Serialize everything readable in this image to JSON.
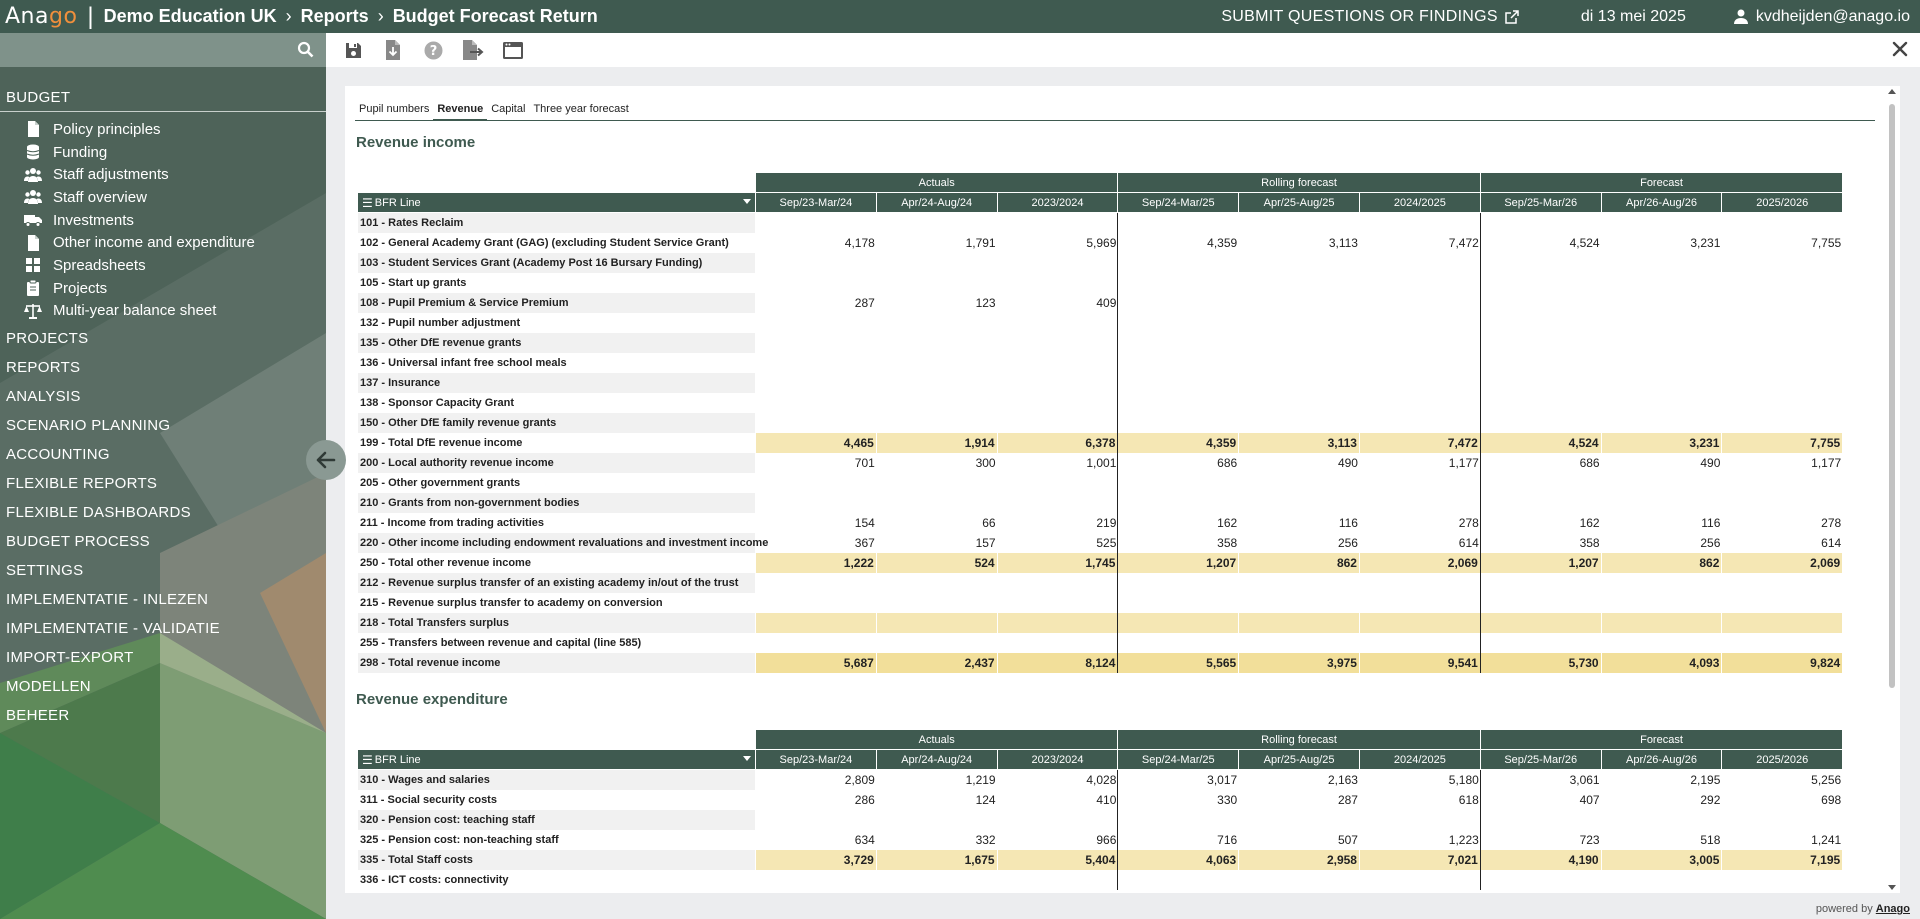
{
  "header": {
    "logo_a": "Ana",
    "logo_b": "go",
    "breadcrumb": [
      "Demo Education UK",
      "Reports",
      "Budget Forecast Return"
    ],
    "submit_label": "SUBMIT QUESTIONS OR FINDINGS",
    "date": "di 13 mei 2025",
    "user": "kvdheijden@anago.io"
  },
  "sidebar": {
    "search_placeholder": "",
    "budget_label": "BUDGET",
    "budget_items": [
      {
        "label": "Policy principles",
        "icon": "document-icon"
      },
      {
        "label": "Funding",
        "icon": "coins-icon"
      },
      {
        "label": "Staff adjustments",
        "icon": "users-icon"
      },
      {
        "label": "Staff overview",
        "icon": "users-icon"
      },
      {
        "label": "Investments",
        "icon": "truck-icon"
      },
      {
        "label": "Other income and expenditure",
        "icon": "document-icon"
      },
      {
        "label": "Spreadsheets",
        "icon": "grid-icon"
      },
      {
        "label": "Projects",
        "icon": "clipboard-icon"
      },
      {
        "label": "Multi-year balance sheet",
        "icon": "scale-icon"
      }
    ],
    "sections": [
      "PROJECTS",
      "REPORTS",
      "ANALYSIS",
      "SCENARIO PLANNING",
      "ACCOUNTING",
      "FLEXIBLE REPORTS",
      "FLEXIBLE DASHBOARDS",
      "BUDGET PROCESS",
      "SETTINGS",
      "IMPLEMENTATIE - INLEZEN",
      "IMPLEMENTATIE - VALIDATIE",
      "IMPORT-EXPORT",
      "MODELLEN",
      "BEHEER"
    ]
  },
  "toolbar": {
    "icons": [
      "save-icon",
      "download-icon",
      "help-icon",
      "export-icon",
      "window-icon"
    ]
  },
  "tabs": [
    "Pupil numbers",
    "Revenue",
    "Capital",
    "Three year forecast"
  ],
  "active_tab": 1,
  "grid_header": {
    "label_col": "BFR Line",
    "groups": [
      "Actuals",
      "Rolling forecast",
      "Forecast"
    ],
    "columns": [
      "Sep/23-Mar/24",
      "Apr/24-Aug/24",
      "2023/2024",
      "Sep/24-Mar/25",
      "Apr/25-Aug/25",
      "2024/2025",
      "Sep/25-Mar/26",
      "Apr/26-Aug/26",
      "2025/2026"
    ]
  },
  "income": {
    "title": "Revenue income",
    "rows": [
      {
        "label": "101 - Rates Reclaim",
        "type": "normal",
        "v": [
          "",
          "",
          "",
          "",
          "",
          "",
          "",
          "",
          ""
        ]
      },
      {
        "label": "102 - General Academy Grant (GAG) (excluding Student Service Grant)",
        "type": "normal",
        "v": [
          "4,178",
          "1,791",
          "5,969",
          "4,359",
          "3,113",
          "7,472",
          "4,524",
          "3,231",
          "7,755"
        ]
      },
      {
        "label": "103 - Student Services Grant (Academy Post 16 Bursary Funding)",
        "type": "normal",
        "v": [
          "",
          "",
          "",
          "",
          "",
          "",
          "",
          "",
          ""
        ]
      },
      {
        "label": "105 - Start up grants",
        "type": "normal",
        "v": [
          "",
          "",
          "",
          "",
          "",
          "",
          "",
          "",
          ""
        ]
      },
      {
        "label": "108 - Pupil Premium & Service Premium",
        "type": "normal",
        "v": [
          "287",
          "123",
          "409",
          "",
          "",
          "",
          "",
          "",
          ""
        ]
      },
      {
        "label": "132 - Pupil number adjustment",
        "type": "normal",
        "v": [
          "",
          "",
          "",
          "",
          "",
          "",
          "",
          "",
          ""
        ]
      },
      {
        "label": "135 - Other DfE revenue grants",
        "type": "normal",
        "v": [
          "",
          "",
          "",
          "",
          "",
          "",
          "",
          "",
          ""
        ]
      },
      {
        "label": "136 - Universal infant free school meals",
        "type": "normal",
        "v": [
          "",
          "",
          "",
          "",
          "",
          "",
          "",
          "",
          ""
        ]
      },
      {
        "label": "137 - Insurance",
        "type": "normal",
        "v": [
          "",
          "",
          "",
          "",
          "",
          "",
          "",
          "",
          ""
        ]
      },
      {
        "label": "138 - Sponsor Capacity Grant",
        "type": "normal",
        "v": [
          "",
          "",
          "",
          "",
          "",
          "",
          "",
          "",
          ""
        ]
      },
      {
        "label": "150 - Other DfE family revenue grants",
        "type": "normal",
        "v": [
          "",
          "",
          "",
          "",
          "",
          "",
          "",
          "",
          ""
        ]
      },
      {
        "label": "199 - Total DfE revenue income",
        "type": "total",
        "v": [
          "4,465",
          "1,914",
          "6,378",
          "4,359",
          "3,113",
          "7,472",
          "4,524",
          "3,231",
          "7,755"
        ]
      },
      {
        "label": "200 - Local authority revenue income",
        "type": "normal",
        "v": [
          "701",
          "300",
          "1,001",
          "686",
          "490",
          "1,177",
          "686",
          "490",
          "1,177"
        ]
      },
      {
        "label": "205 - Other government grants",
        "type": "normal",
        "v": [
          "",
          "",
          "",
          "",
          "",
          "",
          "",
          "",
          ""
        ]
      },
      {
        "label": "210 - Grants from non-government bodies",
        "type": "normal",
        "v": [
          "",
          "",
          "",
          "",
          "",
          "",
          "",
          "",
          ""
        ]
      },
      {
        "label": "211 - Income from trading activities",
        "type": "normal",
        "v": [
          "154",
          "66",
          "219",
          "162",
          "116",
          "278",
          "162",
          "116",
          "278"
        ]
      },
      {
        "label": "220 - Other income including endowment revaluations and investment income",
        "type": "normal",
        "v": [
          "367",
          "157",
          "525",
          "358",
          "256",
          "614",
          "358",
          "256",
          "614"
        ]
      },
      {
        "label": "250 - Total other revenue income",
        "type": "total",
        "v": [
          "1,222",
          "524",
          "1,745",
          "1,207",
          "862",
          "2,069",
          "1,207",
          "862",
          "2,069"
        ]
      },
      {
        "label": "212 - Revenue surplus transfer of an existing academy in/out of the trust",
        "type": "normal",
        "v": [
          "",
          "",
          "",
          "",
          "",
          "",
          "",
          "",
          ""
        ]
      },
      {
        "label": "215 - Revenue surplus transfer to academy on conversion",
        "type": "normal",
        "v": [
          "",
          "",
          "",
          "",
          "",
          "",
          "",
          "",
          ""
        ]
      },
      {
        "label": "218 - Total Transfers surplus",
        "type": "total",
        "v": [
          "",
          "",
          "",
          "",
          "",
          "",
          "",
          "",
          ""
        ]
      },
      {
        "label": "255 - Transfers between revenue and capital (line 585)",
        "type": "normal",
        "v": [
          "",
          "",
          "",
          "",
          "",
          "",
          "",
          "",
          ""
        ]
      },
      {
        "label": "298 - Total revenue income",
        "type": "grand",
        "v": [
          "5,687",
          "2,437",
          "8,124",
          "5,565",
          "3,975",
          "9,541",
          "5,730",
          "4,093",
          "9,824"
        ]
      }
    ]
  },
  "expenditure": {
    "title": "Revenue expenditure",
    "rows": [
      {
        "label": "310 - Wages and salaries",
        "type": "normal",
        "v": [
          "2,809",
          "1,219",
          "4,028",
          "3,017",
          "2,163",
          "5,180",
          "3,061",
          "2,195",
          "5,256"
        ]
      },
      {
        "label": "311 - Social security costs",
        "type": "normal",
        "v": [
          "286",
          "124",
          "410",
          "330",
          "287",
          "618",
          "407",
          "292",
          "698"
        ]
      },
      {
        "label": "320 - Pension cost: teaching staff",
        "type": "normal",
        "v": [
          "",
          "",
          "",
          "",
          "",
          "",
          "",
          "",
          ""
        ]
      },
      {
        "label": "325 - Pension cost: non-teaching staff",
        "type": "normal",
        "v": [
          "634",
          "332",
          "966",
          "716",
          "507",
          "1,223",
          "723",
          "518",
          "1,241"
        ]
      },
      {
        "label": "335 - Total Staff costs",
        "type": "total",
        "v": [
          "3,729",
          "1,675",
          "5,404",
          "4,063",
          "2,958",
          "7,021",
          "4,190",
          "3,005",
          "7,195"
        ]
      },
      {
        "label": "336 - ICT costs: connectivity",
        "type": "normal",
        "v": [
          "",
          "",
          "",
          "",
          "",
          "",
          "",
          "",
          ""
        ]
      }
    ]
  },
  "footer": {
    "powered_prefix": "powered by",
    "powered_brand": "Anago"
  }
}
